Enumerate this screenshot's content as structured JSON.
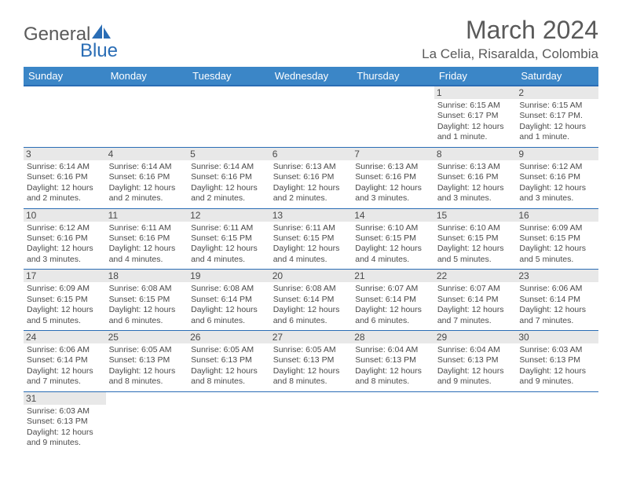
{
  "brand": {
    "general": "General",
    "blue": "Blue"
  },
  "title": "March 2024",
  "location": "La Celia, Risaralda, Colombia",
  "colors": {
    "header_bg": "#3b86c7",
    "header_border": "#2a6db5",
    "cell_border": "#2a6db5",
    "daynum_bg": "#e8e8e8",
    "text": "#4a4a4a"
  },
  "weekdays": [
    "Sunday",
    "Monday",
    "Tuesday",
    "Wednesday",
    "Thursday",
    "Friday",
    "Saturday"
  ],
  "weeks": [
    [
      null,
      null,
      null,
      null,
      null,
      {
        "n": "1",
        "sr": "Sunrise: 6:15 AM",
        "ss": "Sunset: 6:17 PM",
        "dl": "Daylight: 12 hours and 1 minute."
      },
      {
        "n": "2",
        "sr": "Sunrise: 6:15 AM",
        "ss": "Sunset: 6:17 PM.",
        "dl": "Daylight: 12 hours and 1 minute."
      }
    ],
    [
      {
        "n": "3",
        "sr": "Sunrise: 6:14 AM",
        "ss": "Sunset: 6:16 PM",
        "dl": "Daylight: 12 hours and 2 minutes."
      },
      {
        "n": "4",
        "sr": "Sunrise: 6:14 AM",
        "ss": "Sunset: 6:16 PM",
        "dl": "Daylight: 12 hours and 2 minutes."
      },
      {
        "n": "5",
        "sr": "Sunrise: 6:14 AM",
        "ss": "Sunset: 6:16 PM",
        "dl": "Daylight: 12 hours and 2 minutes."
      },
      {
        "n": "6",
        "sr": "Sunrise: 6:13 AM",
        "ss": "Sunset: 6:16 PM",
        "dl": "Daylight: 12 hours and 2 minutes."
      },
      {
        "n": "7",
        "sr": "Sunrise: 6:13 AM",
        "ss": "Sunset: 6:16 PM",
        "dl": "Daylight: 12 hours and 3 minutes."
      },
      {
        "n": "8",
        "sr": "Sunrise: 6:13 AM",
        "ss": "Sunset: 6:16 PM",
        "dl": "Daylight: 12 hours and 3 minutes."
      },
      {
        "n": "9",
        "sr": "Sunrise: 6:12 AM",
        "ss": "Sunset: 6:16 PM",
        "dl": "Daylight: 12 hours and 3 minutes."
      }
    ],
    [
      {
        "n": "10",
        "sr": "Sunrise: 6:12 AM",
        "ss": "Sunset: 6:16 PM",
        "dl": "Daylight: 12 hours and 3 minutes."
      },
      {
        "n": "11",
        "sr": "Sunrise: 6:11 AM",
        "ss": "Sunset: 6:16 PM",
        "dl": "Daylight: 12 hours and 4 minutes."
      },
      {
        "n": "12",
        "sr": "Sunrise: 6:11 AM",
        "ss": "Sunset: 6:15 PM",
        "dl": "Daylight: 12 hours and 4 minutes."
      },
      {
        "n": "13",
        "sr": "Sunrise: 6:11 AM",
        "ss": "Sunset: 6:15 PM",
        "dl": "Daylight: 12 hours and 4 minutes."
      },
      {
        "n": "14",
        "sr": "Sunrise: 6:10 AM",
        "ss": "Sunset: 6:15 PM",
        "dl": "Daylight: 12 hours and 4 minutes."
      },
      {
        "n": "15",
        "sr": "Sunrise: 6:10 AM",
        "ss": "Sunset: 6:15 PM",
        "dl": "Daylight: 12 hours and 5 minutes."
      },
      {
        "n": "16",
        "sr": "Sunrise: 6:09 AM",
        "ss": "Sunset: 6:15 PM",
        "dl": "Daylight: 12 hours and 5 minutes."
      }
    ],
    [
      {
        "n": "17",
        "sr": "Sunrise: 6:09 AM",
        "ss": "Sunset: 6:15 PM",
        "dl": "Daylight: 12 hours and 5 minutes."
      },
      {
        "n": "18",
        "sr": "Sunrise: 6:08 AM",
        "ss": "Sunset: 6:15 PM",
        "dl": "Daylight: 12 hours and 6 minutes."
      },
      {
        "n": "19",
        "sr": "Sunrise: 6:08 AM",
        "ss": "Sunset: 6:14 PM",
        "dl": "Daylight: 12 hours and 6 minutes."
      },
      {
        "n": "20",
        "sr": "Sunrise: 6:08 AM",
        "ss": "Sunset: 6:14 PM",
        "dl": "Daylight: 12 hours and 6 minutes."
      },
      {
        "n": "21",
        "sr": "Sunrise: 6:07 AM",
        "ss": "Sunset: 6:14 PM",
        "dl": "Daylight: 12 hours and 6 minutes."
      },
      {
        "n": "22",
        "sr": "Sunrise: 6:07 AM",
        "ss": "Sunset: 6:14 PM",
        "dl": "Daylight: 12 hours and 7 minutes."
      },
      {
        "n": "23",
        "sr": "Sunrise: 6:06 AM",
        "ss": "Sunset: 6:14 PM",
        "dl": "Daylight: 12 hours and 7 minutes."
      }
    ],
    [
      {
        "n": "24",
        "sr": "Sunrise: 6:06 AM",
        "ss": "Sunset: 6:14 PM",
        "dl": "Daylight: 12 hours and 7 minutes."
      },
      {
        "n": "25",
        "sr": "Sunrise: 6:05 AM",
        "ss": "Sunset: 6:13 PM",
        "dl": "Daylight: 12 hours and 8 minutes."
      },
      {
        "n": "26",
        "sr": "Sunrise: 6:05 AM",
        "ss": "Sunset: 6:13 PM",
        "dl": "Daylight: 12 hours and 8 minutes."
      },
      {
        "n": "27",
        "sr": "Sunrise: 6:05 AM",
        "ss": "Sunset: 6:13 PM",
        "dl": "Daylight: 12 hours and 8 minutes."
      },
      {
        "n": "28",
        "sr": "Sunrise: 6:04 AM",
        "ss": "Sunset: 6:13 PM",
        "dl": "Daylight: 12 hours and 8 minutes."
      },
      {
        "n": "29",
        "sr": "Sunrise: 6:04 AM",
        "ss": "Sunset: 6:13 PM",
        "dl": "Daylight: 12 hours and 9 minutes."
      },
      {
        "n": "30",
        "sr": "Sunrise: 6:03 AM",
        "ss": "Sunset: 6:13 PM",
        "dl": "Daylight: 12 hours and 9 minutes."
      }
    ],
    [
      {
        "n": "31",
        "sr": "Sunrise: 6:03 AM",
        "ss": "Sunset: 6:13 PM",
        "dl": "Daylight: 12 hours and 9 minutes."
      },
      null,
      null,
      null,
      null,
      null,
      null
    ]
  ]
}
